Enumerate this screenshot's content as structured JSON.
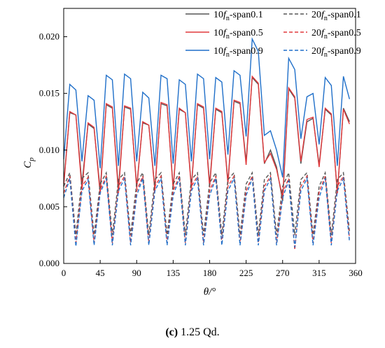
{
  "caption": {
    "label": "(c)",
    "text": "1.25 Qd."
  },
  "chart_data": {
    "type": "line",
    "xlabel": "θ/°",
    "ylabel": "Cp",
    "ylabel_main": "C",
    "ylabel_sub": "p",
    "xlim": [
      0,
      360
    ],
    "ylim": [
      0,
      0.0225
    ],
    "xticks": [
      0,
      45,
      90,
      135,
      180,
      225,
      270,
      315,
      360
    ],
    "yticks": [
      0.0,
      0.005,
      0.01,
      0.015,
      0.02
    ],
    "ytick_labels": [
      "0.000",
      "0.005",
      "0.010",
      "0.015",
      "0.020"
    ],
    "legend_position": "top-right",
    "x": [
      0,
      7.5,
      15,
      22.5,
      30,
      37.5,
      45,
      52.5,
      60,
      67.5,
      75,
      82.5,
      90,
      97.5,
      105,
      112.5,
      120,
      127.5,
      135,
      142.5,
      150,
      157.5,
      165,
      172.5,
      180,
      187.5,
      195,
      202.5,
      210,
      217.5,
      225,
      232.5,
      240,
      247.5,
      255,
      262.5,
      270,
      277.5,
      285,
      292.5,
      300,
      307.5,
      315,
      322.5,
      330,
      337.5,
      345,
      352.5
    ],
    "series": [
      {
        "name_main": "10",
        "name_f": "f",
        "name_sub": "n",
        "name_suffix": "-span0.1",
        "color": "#555555",
        "dash": "solid",
        "values": [
          0.007,
          0.0133,
          0.0131,
          0.007,
          0.0123,
          0.0119,
          0.0065,
          0.014,
          0.0137,
          0.0066,
          0.0138,
          0.0136,
          0.0068,
          0.0124,
          0.0122,
          0.0066,
          0.0141,
          0.0139,
          0.0067,
          0.0136,
          0.0133,
          0.0068,
          0.014,
          0.0137,
          0.007,
          0.0136,
          0.0133,
          0.0072,
          0.0143,
          0.0141,
          0.009,
          0.0164,
          0.0158,
          0.0088,
          0.01,
          0.0085,
          0.0055,
          0.0154,
          0.0146,
          0.0088,
          0.0125,
          0.0128,
          0.0087,
          0.0136,
          0.0131,
          0.0062,
          0.0137,
          0.0125
        ]
      },
      {
        "name_main": "10",
        "name_f": "f",
        "name_sub": "n",
        "name_suffix": "-span0.5",
        "color": "#e0383b",
        "dash": "solid",
        "values": [
          0.0068,
          0.0134,
          0.0131,
          0.0065,
          0.0124,
          0.012,
          0.0061,
          0.0141,
          0.0138,
          0.0062,
          0.0139,
          0.0137,
          0.0066,
          0.0125,
          0.0122,
          0.0064,
          0.0142,
          0.014,
          0.0065,
          0.0137,
          0.0133,
          0.0066,
          0.0141,
          0.0138,
          0.0067,
          0.0137,
          0.0134,
          0.007,
          0.0144,
          0.0142,
          0.0087,
          0.0165,
          0.0159,
          0.0089,
          0.0097,
          0.0083,
          0.0058,
          0.0155,
          0.0147,
          0.009,
          0.0127,
          0.0129,
          0.0085,
          0.0137,
          0.0132,
          0.0062,
          0.0136,
          0.0123
        ]
      },
      {
        "name_main": "10",
        "name_f": "f",
        "name_sub": "n",
        "name_suffix": "-span0.9",
        "color": "#1f6fc9",
        "dash": "solid",
        "values": [
          0.0092,
          0.0158,
          0.0153,
          0.009,
          0.0148,
          0.0144,
          0.0084,
          0.0166,
          0.0162,
          0.0086,
          0.0167,
          0.0163,
          0.009,
          0.0151,
          0.0146,
          0.0086,
          0.0166,
          0.0163,
          0.0088,
          0.0162,
          0.0158,
          0.009,
          0.0167,
          0.0163,
          0.0092,
          0.0164,
          0.016,
          0.0096,
          0.017,
          0.0166,
          0.0112,
          0.0198,
          0.0187,
          0.0113,
          0.0117,
          0.01,
          0.0076,
          0.0181,
          0.0171,
          0.011,
          0.0147,
          0.015,
          0.0105,
          0.0164,
          0.0157,
          0.0086,
          0.0165,
          0.0145
        ]
      },
      {
        "name_main": "20",
        "name_f": "f",
        "name_sub": "n",
        "name_suffix": "-span0.1",
        "color": "#555555",
        "dash": "dashed",
        "values": [
          0.0068,
          0.008,
          0.0025,
          0.0075,
          0.008,
          0.0025,
          0.007,
          0.008,
          0.0025,
          0.0074,
          0.008,
          0.0025,
          0.0071,
          0.008,
          0.0025,
          0.0074,
          0.008,
          0.0025,
          0.007,
          0.008,
          0.0025,
          0.0074,
          0.008,
          0.0025,
          0.0071,
          0.008,
          0.0025,
          0.0074,
          0.008,
          0.0025,
          0.007,
          0.008,
          0.0025,
          0.0074,
          0.008,
          0.0025,
          0.0068,
          0.008,
          0.0025,
          0.0074,
          0.008,
          0.0025,
          0.0068,
          0.008,
          0.0025,
          0.0074,
          0.008,
          0.0028
        ]
      },
      {
        "name_main": "20",
        "name_f": "f",
        "name_sub": "n",
        "name_suffix": "-span0.5",
        "color": "#e0383b",
        "dash": "dashed",
        "values": [
          0.0062,
          0.0077,
          0.0018,
          0.0068,
          0.0076,
          0.0018,
          0.0065,
          0.0077,
          0.0018,
          0.0068,
          0.0077,
          0.0018,
          0.0064,
          0.0077,
          0.0018,
          0.0068,
          0.0077,
          0.0018,
          0.0064,
          0.0077,
          0.0018,
          0.0068,
          0.0077,
          0.0018,
          0.0064,
          0.0077,
          0.0018,
          0.0068,
          0.0077,
          0.0018,
          0.0064,
          0.0077,
          0.0018,
          0.0068,
          0.0077,
          0.0018,
          0.0062,
          0.0075,
          0.0012,
          0.0068,
          0.0077,
          0.0018,
          0.0063,
          0.0077,
          0.0018,
          0.0068,
          0.0077,
          0.0022
        ]
      },
      {
        "name_main": "20",
        "name_f": "f",
        "name_sub": "n",
        "name_suffix": "-span0.9",
        "color": "#1f6fc9",
        "dash": "dashed",
        "values": [
          0.0058,
          0.0075,
          0.0015,
          0.0064,
          0.0074,
          0.0016,
          0.0062,
          0.0075,
          0.0016,
          0.0064,
          0.0075,
          0.0016,
          0.006,
          0.0075,
          0.0016,
          0.0064,
          0.0075,
          0.0016,
          0.006,
          0.0075,
          0.0016,
          0.0064,
          0.0075,
          0.0016,
          0.006,
          0.0075,
          0.0016,
          0.0064,
          0.0075,
          0.0016,
          0.006,
          0.0075,
          0.0016,
          0.0064,
          0.0075,
          0.0016,
          0.0058,
          0.0073,
          0.0014,
          0.0064,
          0.0075,
          0.0016,
          0.0058,
          0.0075,
          0.0016,
          0.0064,
          0.0075,
          0.0019
        ]
      }
    ]
  }
}
